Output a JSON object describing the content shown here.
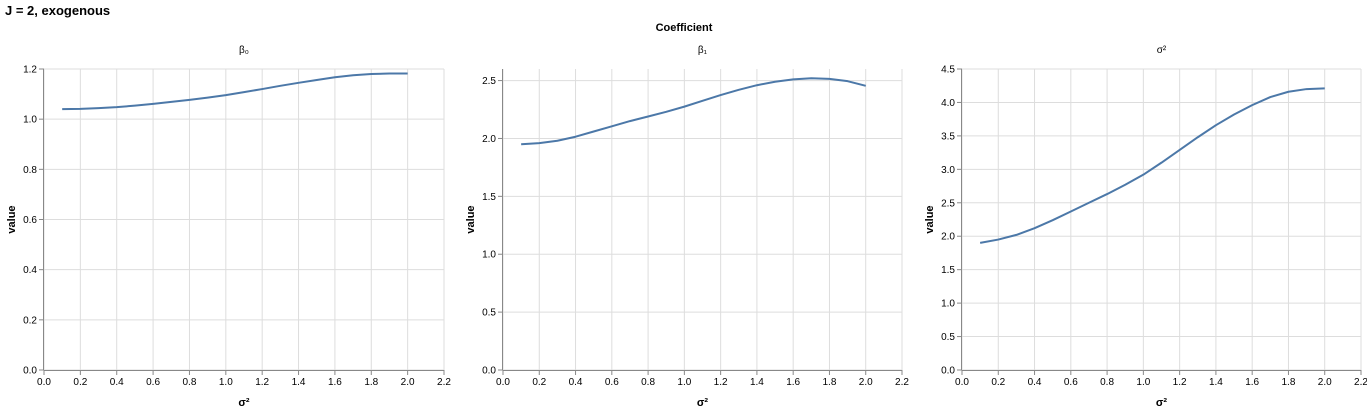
{
  "title": "J = 2, exogenous",
  "facet_header": "Coefficient",
  "chart_data": [
    {
      "type": "line",
      "title": "β₀",
      "xlabel": "σ²",
      "ylabel": "value",
      "xlim": [
        0,
        2.2
      ],
      "ylim": [
        0,
        1.2
      ],
      "xticks": [
        0,
        0.2,
        0.4,
        0.6,
        0.8,
        1.0,
        1.2,
        1.4,
        1.6,
        1.8,
        2.0,
        2.2
      ],
      "yticks": [
        0,
        0.2,
        0.4,
        0.6,
        0.8,
        1.0,
        1.2
      ],
      "ytick_labels": [
        "0.0",
        "0.2",
        "0.4",
        "0.6",
        "0.8",
        "1.0",
        "1.2"
      ],
      "x": [
        0.1,
        0.2,
        0.3,
        0.4,
        0.5,
        0.6,
        0.7,
        0.8,
        0.9,
        1.0,
        1.1,
        1.2,
        1.3,
        1.4,
        1.5,
        1.6,
        1.7,
        1.8,
        1.9,
        2.0
      ],
      "y": [
        1.04,
        1.041,
        1.044,
        1.048,
        1.054,
        1.061,
        1.069,
        1.077,
        1.086,
        1.096,
        1.108,
        1.12,
        1.133,
        1.145,
        1.156,
        1.167,
        1.175,
        1.18,
        1.182,
        1.182
      ],
      "grid": true,
      "color": "#4c78a8"
    },
    {
      "type": "line",
      "title": "β₁",
      "xlabel": "σ²",
      "ylabel": "value",
      "xlim": [
        0,
        2.2
      ],
      "ylim": [
        0,
        2.6
      ],
      "xticks": [
        0,
        0.2,
        0.4,
        0.6,
        0.8,
        1.0,
        1.2,
        1.4,
        1.6,
        1.8,
        2.0,
        2.2
      ],
      "yticks": [
        0,
        0.5,
        1.0,
        1.5,
        2.0,
        2.5
      ],
      "ytick_labels": [
        "0.0",
        "0.5",
        "1.0",
        "1.5",
        "2.0",
        "2.5"
      ],
      "x": [
        0.1,
        0.2,
        0.3,
        0.4,
        0.5,
        0.6,
        0.7,
        0.8,
        0.9,
        1.0,
        1.1,
        1.2,
        1.3,
        1.4,
        1.5,
        1.6,
        1.7,
        1.8,
        1.9,
        2.0
      ],
      "y": [
        1.95,
        1.96,
        1.98,
        2.015,
        2.06,
        2.105,
        2.15,
        2.19,
        2.23,
        2.275,
        2.325,
        2.375,
        2.42,
        2.46,
        2.49,
        2.51,
        2.52,
        2.515,
        2.495,
        2.455
      ],
      "grid": true,
      "color": "#4c78a8"
    },
    {
      "type": "line",
      "title": "σ²",
      "xlabel": "σ²",
      "ylabel": "value",
      "xlim": [
        0,
        2.2
      ],
      "ylim": [
        0,
        4.5
      ],
      "xticks": [
        0,
        0.2,
        0.4,
        0.6,
        0.8,
        1.0,
        1.2,
        1.4,
        1.6,
        1.8,
        2.0,
        2.2
      ],
      "yticks": [
        0,
        0.5,
        1.0,
        1.5,
        2.0,
        2.5,
        3.0,
        3.5,
        4.0,
        4.5
      ],
      "ytick_labels": [
        "0.0",
        "0.5",
        "1.0",
        "1.5",
        "2.0",
        "2.5",
        "3.0",
        "3.5",
        "4.0",
        "4.5"
      ],
      "x": [
        0.1,
        0.2,
        0.3,
        0.4,
        0.5,
        0.6,
        0.7,
        0.8,
        0.9,
        1.0,
        1.1,
        1.2,
        1.3,
        1.4,
        1.5,
        1.6,
        1.7,
        1.8,
        1.9,
        2.0
      ],
      "y": [
        1.9,
        1.95,
        2.02,
        2.12,
        2.24,
        2.37,
        2.5,
        2.63,
        2.77,
        2.92,
        3.1,
        3.29,
        3.48,
        3.66,
        3.82,
        3.96,
        4.08,
        4.16,
        4.2,
        4.21
      ],
      "grid": true,
      "color": "#4c78a8"
    }
  ]
}
